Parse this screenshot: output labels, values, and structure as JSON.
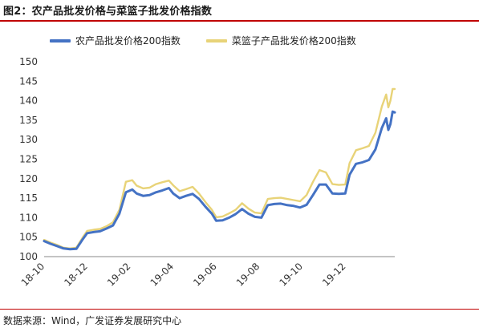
{
  "header": {
    "title": "图2：农产品批发价格与菜篮子批发价格指数"
  },
  "footer": {
    "source": "数据来源：Wind，广发证券发展研究中心"
  },
  "chart_data": {
    "type": "line",
    "title": "",
    "xlabel": "",
    "ylabel": "",
    "ylim": [
      100,
      150
    ],
    "yticks": [
      100,
      105,
      110,
      115,
      120,
      125,
      130,
      135,
      140,
      145,
      150
    ],
    "grid": false,
    "legend_position": "top",
    "x_tick_labels": [
      "18-10",
      "18-12",
      "19-02",
      "19-04",
      "19-06",
      "19-08",
      "19-10",
      "19-12"
    ],
    "x_tick_positions": [
      0,
      2,
      4,
      6,
      8,
      10,
      12,
      14
    ],
    "x_range": [
      0,
      16.3
    ],
    "series": [
      {
        "name": "农产品批发价格200指数",
        "color": "#4472c4",
        "points": [
          [
            0.0,
            104.0
          ],
          [
            0.3,
            103.3
          ],
          [
            0.6,
            102.7
          ],
          [
            0.9,
            102.1
          ],
          [
            1.2,
            101.9
          ],
          [
            1.5,
            102.0
          ],
          [
            1.8,
            104.5
          ],
          [
            2.0,
            106.0
          ],
          [
            2.3,
            106.3
          ],
          [
            2.6,
            106.5
          ],
          [
            2.9,
            107.2
          ],
          [
            3.2,
            108.0
          ],
          [
            3.5,
            111.0
          ],
          [
            3.8,
            116.5
          ],
          [
            4.1,
            117.2
          ],
          [
            4.3,
            116.2
          ],
          [
            4.6,
            115.6
          ],
          [
            4.9,
            115.8
          ],
          [
            5.2,
            116.5
          ],
          [
            5.5,
            117.0
          ],
          [
            5.8,
            117.6
          ],
          [
            6.0,
            116.2
          ],
          [
            6.3,
            115.0
          ],
          [
            6.6,
            115.6
          ],
          [
            6.9,
            116.1
          ],
          [
            7.2,
            114.8
          ],
          [
            7.5,
            112.8
          ],
          [
            7.8,
            111.0
          ],
          [
            8.0,
            109.2
          ],
          [
            8.3,
            109.3
          ],
          [
            8.6,
            110.0
          ],
          [
            8.9,
            110.9
          ],
          [
            9.2,
            112.2
          ],
          [
            9.5,
            111.0
          ],
          [
            9.8,
            110.2
          ],
          [
            10.1,
            110.0
          ],
          [
            10.4,
            113.2
          ],
          [
            10.7,
            113.5
          ],
          [
            11.0,
            113.6
          ],
          [
            11.3,
            113.2
          ],
          [
            11.6,
            113.0
          ],
          [
            11.9,
            112.6
          ],
          [
            12.2,
            113.3
          ],
          [
            12.5,
            115.8
          ],
          [
            12.8,
            118.5
          ],
          [
            13.1,
            118.5
          ],
          [
            13.4,
            116.2
          ],
          [
            13.7,
            116.1
          ],
          [
            14.0,
            116.2
          ],
          [
            14.2,
            121.0
          ],
          [
            14.5,
            123.8
          ],
          [
            14.8,
            124.2
          ],
          [
            15.1,
            124.8
          ],
          [
            15.4,
            127.5
          ],
          [
            15.7,
            133.0
          ],
          [
            15.9,
            135.5
          ],
          [
            16.0,
            132.5
          ],
          [
            16.1,
            134.0
          ],
          [
            16.2,
            137.2
          ],
          [
            16.3,
            137.0
          ]
        ]
      },
      {
        "name": "菜篮子产品批发价格200指数",
        "color": "#e8d378",
        "points": [
          [
            0.0,
            104.3
          ],
          [
            0.3,
            103.6
          ],
          [
            0.6,
            103.0
          ],
          [
            0.9,
            102.3
          ],
          [
            1.2,
            102.1
          ],
          [
            1.5,
            102.3
          ],
          [
            1.8,
            105.0
          ],
          [
            2.0,
            106.6
          ],
          [
            2.3,
            106.9
          ],
          [
            2.6,
            107.1
          ],
          [
            2.9,
            107.8
          ],
          [
            3.2,
            108.8
          ],
          [
            3.5,
            112.0
          ],
          [
            3.8,
            119.2
          ],
          [
            4.1,
            119.6
          ],
          [
            4.3,
            118.2
          ],
          [
            4.6,
            117.5
          ],
          [
            4.9,
            117.7
          ],
          [
            5.2,
            118.6
          ],
          [
            5.5,
            119.1
          ],
          [
            5.8,
            119.5
          ],
          [
            6.0,
            118.3
          ],
          [
            6.3,
            116.8
          ],
          [
            6.6,
            117.3
          ],
          [
            6.9,
            117.9
          ],
          [
            7.2,
            116.2
          ],
          [
            7.5,
            114.0
          ],
          [
            7.8,
            112.0
          ],
          [
            8.0,
            110.1
          ],
          [
            8.3,
            110.3
          ],
          [
            8.6,
            111.1
          ],
          [
            8.9,
            112.0
          ],
          [
            9.2,
            113.7
          ],
          [
            9.5,
            112.3
          ],
          [
            9.8,
            111.3
          ],
          [
            10.1,
            111.1
          ],
          [
            10.4,
            114.8
          ],
          [
            10.7,
            115.0
          ],
          [
            11.0,
            115.1
          ],
          [
            11.3,
            114.8
          ],
          [
            11.6,
            114.5
          ],
          [
            11.9,
            114.2
          ],
          [
            12.2,
            115.8
          ],
          [
            12.5,
            119.2
          ],
          [
            12.8,
            122.2
          ],
          [
            13.1,
            121.6
          ],
          [
            13.4,
            118.6
          ],
          [
            13.7,
            118.4
          ],
          [
            14.0,
            118.5
          ],
          [
            14.2,
            124.0
          ],
          [
            14.5,
            127.3
          ],
          [
            14.8,
            127.8
          ],
          [
            15.1,
            128.4
          ],
          [
            15.4,
            131.8
          ],
          [
            15.7,
            138.5
          ],
          [
            15.9,
            141.6
          ],
          [
            16.0,
            138.3
          ],
          [
            16.1,
            140.0
          ],
          [
            16.2,
            143.0
          ],
          [
            16.3,
            143.0
          ]
        ]
      }
    ]
  }
}
